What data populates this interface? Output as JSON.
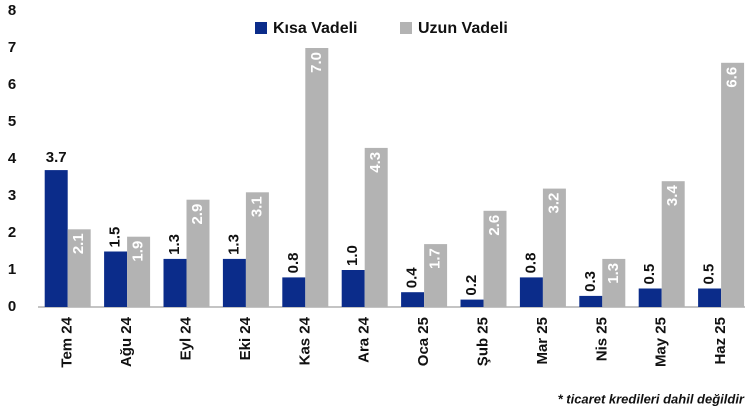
{
  "chart_data": {
    "type": "bar",
    "categories": [
      "Tem 24",
      "Ağu 24",
      "Eyl 24",
      "Eki 24",
      "Kas 24",
      "Ara 24",
      "Oca 25",
      "Şub 25",
      "Mar 25",
      "Nis 25",
      "May 25",
      "Haz 25"
    ],
    "series": [
      {
        "name": "Kısa Vadeli",
        "color": "#0b2c8a",
        "values": [
          3.7,
          1.5,
          1.3,
          1.3,
          0.8,
          1.0,
          0.4,
          0.2,
          0.8,
          0.3,
          0.5,
          0.5
        ],
        "value_labels": [
          "3.7",
          "1.5",
          "1.3",
          "1.3",
          "0.8",
          "1.0",
          "0.4",
          "0.2",
          "0.8",
          "0.3",
          "0.5",
          "0.5"
        ]
      },
      {
        "name": "Uzun Vadeli",
        "color": "#b3b3b3",
        "values": [
          2.1,
          1.9,
          2.9,
          3.1,
          7.0,
          4.3,
          1.7,
          2.6,
          3.2,
          1.3,
          3.4,
          6.6
        ],
        "value_labels": [
          "2.1",
          "1.9",
          "2.9",
          "3.1",
          "7.0",
          "4.3",
          "1.7",
          "2.6",
          "3.2",
          "1.3",
          "3.4",
          "6.6"
        ]
      }
    ],
    "ylim": [
      0,
      8
    ],
    "yticks": [
      0,
      1,
      2,
      3,
      4,
      5,
      6,
      7,
      8
    ],
    "grid": false,
    "legend": "top",
    "annotation": "* ticaret kredileri dahil değildir"
  }
}
